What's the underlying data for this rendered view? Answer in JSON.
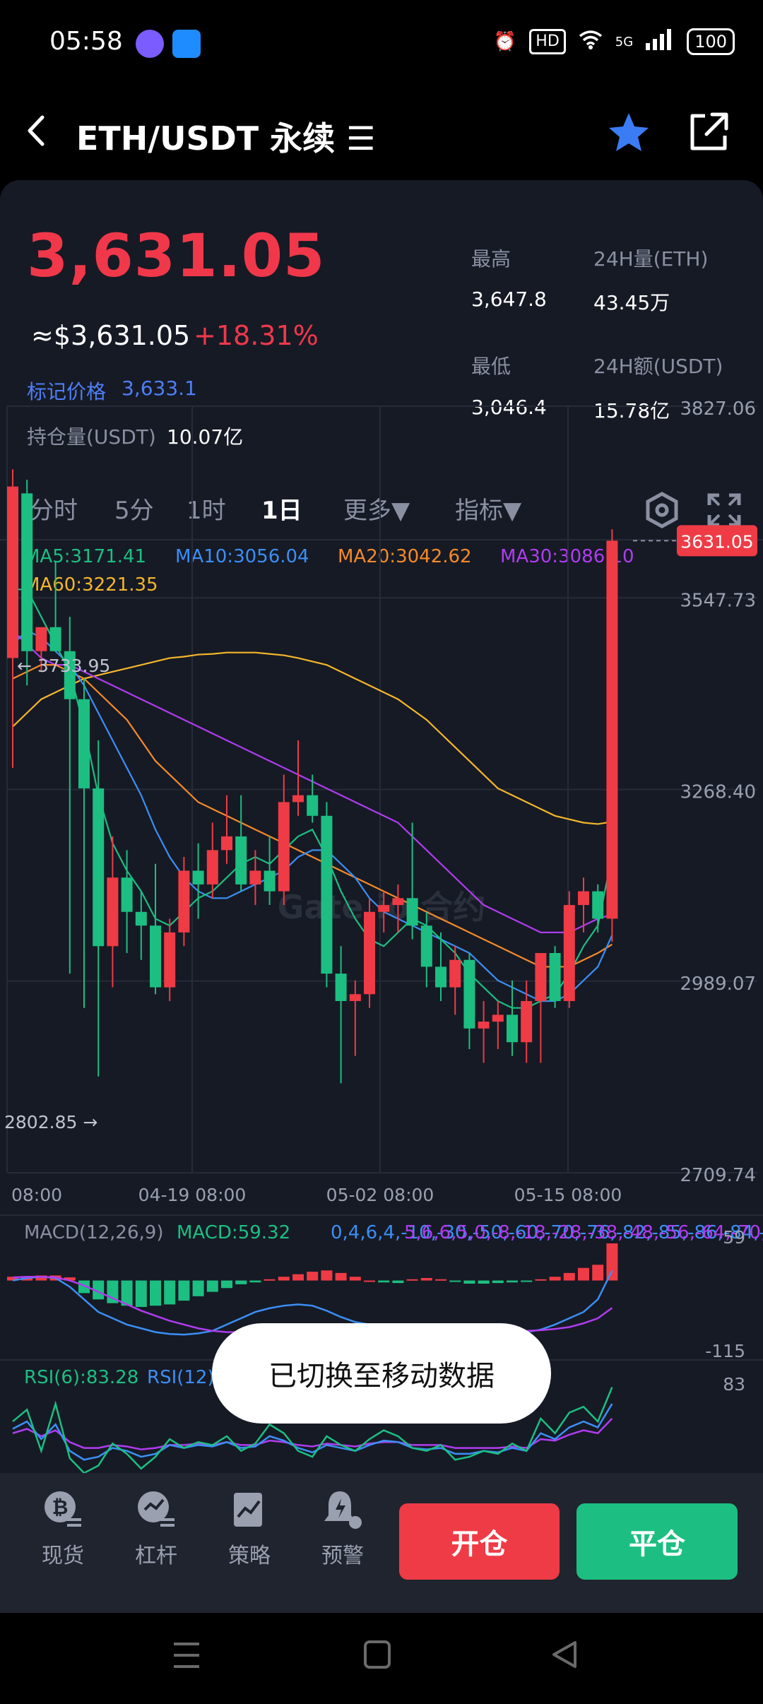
{
  "status_bar": {
    "time": "05:58",
    "hd_badge": "HD",
    "network": "5G",
    "battery": "100"
  },
  "header": {
    "title": "ETH/USDT 永续 ☰"
  },
  "ticker": {
    "last_price": "3,631.05",
    "usd_price": "≈$3,631.05",
    "change_pct": "+18.31%",
    "mark_price_label": "标记价格",
    "mark_price_value": "3,633.1",
    "open_interest_label": "持仓量(USDT)",
    "open_interest_value": "10.07亿",
    "high_label": "最高",
    "high_value": "3,647.8",
    "low_label": "最低",
    "low_value": "3,046.4",
    "vol_eth_label": "24H量(ETH)",
    "vol_eth_value": "43.45万",
    "vol_usdt_label": "24H额(USDT)",
    "vol_usdt_value": "15.78亿"
  },
  "tabs": [
    {
      "label": "分时"
    },
    {
      "label": "5分"
    },
    {
      "label": "1时"
    },
    {
      "label": "1日"
    },
    {
      "label": "更多▼"
    },
    {
      "label": "指标▼"
    }
  ],
  "active_tab": "1日",
  "ma_legend": {
    "ma5": "MA5:3171.41",
    "ma10": "MA10:3056.04",
    "ma20": "MA20:3042.62",
    "ma30": "MA30:3086.10",
    "ma60": "MA60:3221.35"
  },
  "colors": {
    "up": "#ef3b45",
    "down": "#1cbf81",
    "ma5": "#1cbf81",
    "ma10": "#3b8ff5",
    "ma20": "#f58a2a",
    "ma30": "#b03cf0",
    "ma60": "#f5b62a"
  },
  "chart_data": {
    "type": "candlestick",
    "y_axis_ticks": [
      "3827.06",
      "3547.73",
      "3268.40",
      "2989.07",
      "2709.74"
    ],
    "ylim": [
      2709.74,
      3827.06
    ],
    "x_axis_ticks": [
      "08:00",
      "04-19 08:00",
      "05-02 08:00",
      "05-15 08:00"
    ],
    "max_marker": "← 3733.95",
    "min_marker": "2802.85 →",
    "last_price_tag": "3631.05",
    "watermark": "Gate.io 合约",
    "candles": [
      {
        "o": 3460,
        "h": 3735,
        "l": 3300,
        "c": 3710
      },
      {
        "o": 3700,
        "h": 3720,
        "l": 3420,
        "c": 3470
      },
      {
        "o": 3470,
        "h": 3500,
        "l": 3440,
        "c": 3505
      },
      {
        "o": 3505,
        "h": 3600,
        "l": 3470,
        "c": 3470
      },
      {
        "o": 3470,
        "h": 3520,
        "l": 3000,
        "c": 3400
      },
      {
        "o": 3400,
        "h": 3430,
        "l": 2950,
        "c": 3270
      },
      {
        "o": 3270,
        "h": 3340,
        "l": 2850,
        "c": 3040
      },
      {
        "o": 3040,
        "h": 3200,
        "l": 2980,
        "c": 3140
      },
      {
        "o": 3140,
        "h": 3180,
        "l": 3030,
        "c": 3090
      },
      {
        "o": 3090,
        "h": 3120,
        "l": 3020,
        "c": 3070
      },
      {
        "o": 3070,
        "h": 3160,
        "l": 2970,
        "c": 2980
      },
      {
        "o": 2980,
        "h": 3080,
        "l": 2960,
        "c": 3060
      },
      {
        "o": 3060,
        "h": 3170,
        "l": 3040,
        "c": 3150
      },
      {
        "o": 3150,
        "h": 3190,
        "l": 3080,
        "c": 3130
      },
      {
        "o": 3130,
        "h": 3220,
        "l": 3110,
        "c": 3180
      },
      {
        "o": 3180,
        "h": 3260,
        "l": 3160,
        "c": 3200
      },
      {
        "o": 3200,
        "h": 3260,
        "l": 3120,
        "c": 3130
      },
      {
        "o": 3130,
        "h": 3180,
        "l": 3100,
        "c": 3150
      },
      {
        "o": 3150,
        "h": 3200,
        "l": 3100,
        "c": 3120
      },
      {
        "o": 3120,
        "h": 3290,
        "l": 3100,
        "c": 3250
      },
      {
        "o": 3250,
        "h": 3340,
        "l": 3230,
        "c": 3260
      },
      {
        "o": 3260,
        "h": 3290,
        "l": 3220,
        "c": 3230
      },
      {
        "o": 3230,
        "h": 3250,
        "l": 2980,
        "c": 3000
      },
      {
        "o": 3000,
        "h": 3040,
        "l": 2840,
        "c": 2960
      },
      {
        "o": 2960,
        "h": 2990,
        "l": 2880,
        "c": 2970
      },
      {
        "o": 2970,
        "h": 3110,
        "l": 2950,
        "c": 3090
      },
      {
        "o": 3090,
        "h": 3120,
        "l": 3060,
        "c": 3100
      },
      {
        "o": 3100,
        "h": 3130,
        "l": 3060,
        "c": 3110
      },
      {
        "o": 3110,
        "h": 3220,
        "l": 3050,
        "c": 3070
      },
      {
        "o": 3070,
        "h": 3090,
        "l": 2980,
        "c": 3010
      },
      {
        "o": 3010,
        "h": 3060,
        "l": 2960,
        "c": 2980
      },
      {
        "o": 2980,
        "h": 3040,
        "l": 2940,
        "c": 3020
      },
      {
        "o": 3020,
        "h": 3030,
        "l": 2890,
        "c": 2920
      },
      {
        "o": 2920,
        "h": 2960,
        "l": 2870,
        "c": 2930
      },
      {
        "o": 2930,
        "h": 2960,
        "l": 2890,
        "c": 2940
      },
      {
        "o": 2940,
        "h": 2990,
        "l": 2880,
        "c": 2900
      },
      {
        "o": 2900,
        "h": 2990,
        "l": 2870,
        "c": 2960
      },
      {
        "o": 2960,
        "h": 3020,
        "l": 2870,
        "c": 3030
      },
      {
        "o": 3030,
        "h": 3040,
        "l": 2950,
        "c": 2960
      },
      {
        "o": 2960,
        "h": 3120,
        "l": 2950,
        "c": 3100
      },
      {
        "o": 3100,
        "h": 3140,
        "l": 3060,
        "c": 3120
      },
      {
        "o": 3120,
        "h": 3130,
        "l": 3060,
        "c": 3080
      },
      {
        "o": 3080,
        "h": 3647.8,
        "l": 3046.4,
        "c": 3631.05
      }
    ],
    "ma5": [
      3560,
      3560,
      3520,
      3480,
      3440,
      3360,
      3260,
      3190,
      3150,
      3120,
      3080,
      3070,
      3090,
      3110,
      3120,
      3140,
      3160,
      3170,
      3160,
      3180,
      3200,
      3210,
      3170,
      3120,
      3080,
      3050,
      3040,
      3060,
      3080,
      3070,
      3050,
      3030,
      3000,
      2980,
      2960,
      2950,
      2950,
      2960,
      2970,
      3000,
      3040,
      3070,
      3171.41
    ],
    "ma10": [
      3480,
      3500,
      3490,
      3470,
      3450,
      3420,
      3380,
      3340,
      3300,
      3260,
      3210,
      3170,
      3140,
      3120,
      3110,
      3110,
      3120,
      3130,
      3140,
      3150,
      3170,
      3180,
      3180,
      3160,
      3140,
      3110,
      3090,
      3080,
      3070,
      3060,
      3050,
      3040,
      3030,
      3010,
      2990,
      2980,
      2970,
      2960,
      2960,
      2970,
      2990,
      3010,
      3056.04
    ],
    "ma20": [
      3430,
      3440,
      3450,
      3450,
      3440,
      3430,
      3410,
      3390,
      3370,
      3340,
      3310,
      3290,
      3270,
      3250,
      3240,
      3230,
      3220,
      3210,
      3200,
      3190,
      3180,
      3170,
      3160,
      3150,
      3140,
      3130,
      3120,
      3110,
      3100,
      3090,
      3080,
      3070,
      3060,
      3050,
      3040,
      3030,
      3020,
      3010,
      3010,
      3010,
      3020,
      3030,
      3042.62
    ],
    "ma30": [
      3500,
      3480,
      3460,
      3450,
      3450,
      3440,
      3430,
      3420,
      3410,
      3400,
      3390,
      3380,
      3370,
      3360,
      3350,
      3340,
      3330,
      3320,
      3310,
      3300,
      3290,
      3280,
      3270,
      3260,
      3250,
      3240,
      3230,
      3220,
      3200,
      3180,
      3160,
      3140,
      3120,
      3100,
      3090,
      3080,
      3070,
      3060,
      3060,
      3060,
      3070,
      3080,
      3086.1
    ],
    "ma60": [
      3360,
      3380,
      3400,
      3410,
      3420,
      3430,
      3435,
      3440,
      3445,
      3450,
      3455,
      3460,
      3462,
      3465,
      3466,
      3468,
      3468,
      3468,
      3466,
      3464,
      3460,
      3455,
      3450,
      3440,
      3430,
      3420,
      3410,
      3400,
      3385,
      3370,
      3350,
      3330,
      3310,
      3290,
      3270,
      3260,
      3250,
      3240,
      3230,
      3225,
      3220,
      3218,
      3221.35
    ]
  },
  "macd": {
    "title": "MACD(12,26,9)",
    "macd": "MACD:59.32",
    "dif": [
      0,
      4,
      6,
      4,
      -10,
      -30,
      -50,
      -60,
      -70,
      -76,
      -82,
      -85,
      -86,
      -84,
      -80,
      -70,
      -60,
      -50,
      -44,
      -40,
      -38,
      -40,
      -48,
      -58,
      -66,
      -70,
      -72,
      -74,
      -74,
      -76,
      -78,
      -80,
      -82,
      -84,
      -85,
      -84,
      -82,
      -78,
      -70,
      -60,
      -50,
      -30,
      15.79
    ],
    "dea": [
      5,
      6,
      6,
      5,
      0,
      -8,
      -18,
      -28,
      -38,
      -48,
      -56,
      -64,
      -70,
      -76,
      -80,
      -82,
      -82,
      -80,
      -78,
      -76,
      -74,
      -72,
      -72,
      -72,
      -72,
      -73,
      -74,
      -75,
      -76,
      -76,
      -77,
      -78,
      -78,
      -79,
      -80,
      -80,
      -80,
      -79,
      -77,
      -74,
      -68,
      -60,
      -43.53
    ],
    "ymax_label": "59",
    "ymin_label": "-115",
    "hist": [
      6,
      6,
      8,
      8,
      5,
      -20,
      -30,
      -36,
      -40,
      -42,
      -40,
      -38,
      -32,
      -25,
      -18,
      -12,
      -6,
      -3,
      2,
      6,
      10,
      14,
      16,
      12,
      6,
      0,
      -3,
      -4,
      2,
      4,
      2,
      -2,
      -5,
      -5,
      -4,
      -3,
      -2,
      2,
      6,
      12,
      20,
      25,
      59
    ]
  },
  "rsi": {
    "rsi6": "RSI(6):83.28",
    "rsi12": "RSI(12)",
    "ymax_label": "83",
    "rsi6_values": [
      60,
      68,
      40,
      72,
      35,
      25,
      30,
      45,
      38,
      28,
      36,
      48,
      42,
      46,
      44,
      50,
      40,
      45,
      58,
      52,
      40,
      36,
      50,
      44,
      40,
      48,
      54,
      50,
      42,
      40,
      44,
      34,
      36,
      40,
      38,
      45,
      40,
      62,
      52,
      66,
      70,
      60,
      83.28
    ],
    "rsi12_values": [
      55,
      60,
      48,
      58,
      40,
      34,
      36,
      42,
      40,
      36,
      38,
      44,
      42,
      44,
      43,
      46,
      42,
      43,
      50,
      47,
      42,
      39,
      44,
      42,
      40,
      44,
      47,
      46,
      42,
      41,
      42,
      38,
      38,
      40,
      39,
      42,
      40,
      52,
      48,
      56,
      60,
      56,
      72
    ],
    "rsi24_values": [
      52,
      55,
      50,
      54,
      46,
      42,
      42,
      44,
      43,
      41,
      42,
      44,
      44,
      45,
      44,
      46,
      44,
      44,
      47,
      46,
      44,
      43,
      45,
      44,
      43,
      45,
      46,
      46,
      44,
      44,
      44,
      42,
      42,
      42,
      42,
      43,
      42,
      48,
      47,
      51,
      54,
      52,
      62
    ]
  },
  "toast": "已切换至移动数据",
  "bottom_nav": [
    {
      "label": "现货"
    },
    {
      "label": "杠杆"
    },
    {
      "label": "策略"
    },
    {
      "label": "预警"
    }
  ],
  "open_button": "开仓",
  "close_button": "平仓"
}
